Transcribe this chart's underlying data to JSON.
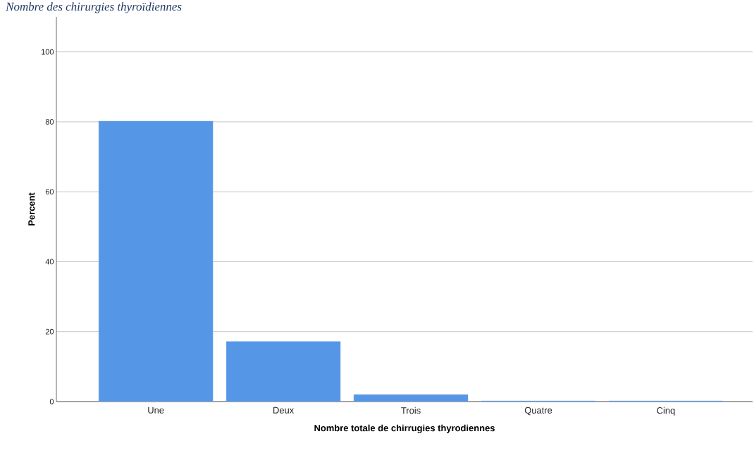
{
  "chart_data": {
    "type": "bar",
    "title": "Nombre des chirurgies thyroïdiennes",
    "xlabel": "Nombre totale de chirrugies thyrodiennes",
    "ylabel": "Percent",
    "categories": [
      "Une",
      "Deux",
      "Trois",
      "Quatre",
      "Cinq"
    ],
    "values": [
      80.2,
      17.2,
      2.0,
      0.2,
      0.2
    ],
    "color": "#5596e6",
    "ylim": [
      0,
      110
    ],
    "yticks": [
      0,
      20,
      40,
      60,
      80,
      100
    ],
    "grid": "y"
  }
}
